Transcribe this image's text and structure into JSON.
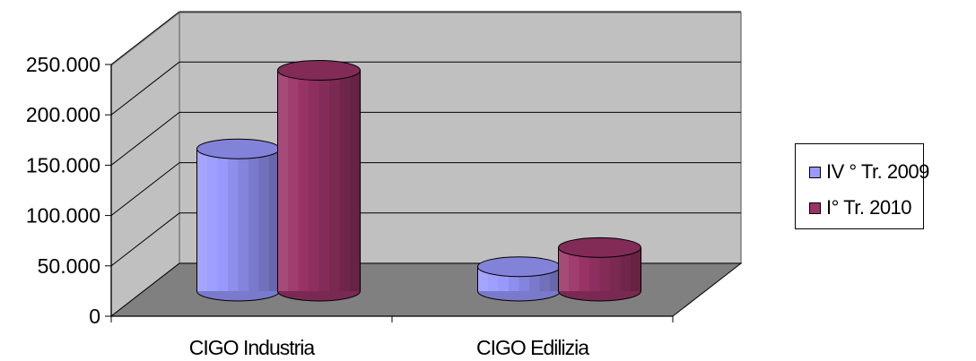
{
  "chart_data": {
    "type": "bar",
    "categories": [
      "CIGO Industria",
      "CIGO Edilizia"
    ],
    "series": [
      {
        "name": "IV ° Tr. 2009",
        "values": [
          150000,
          33000
        ],
        "color": "#9999ff"
      },
      {
        "name": "I° Tr. 2010",
        "values": [
          228000,
          52000
        ],
        "color": "#993366"
      }
    ],
    "y_ticks": [
      "0",
      "50.000",
      "100.000",
      "150.000",
      "200.000",
      "250.000"
    ],
    "ylim": [
      0,
      250000
    ],
    "grid": true,
    "legend_position": "right",
    "wall_color": "#c0c0c0",
    "floor_color": "#808080"
  }
}
